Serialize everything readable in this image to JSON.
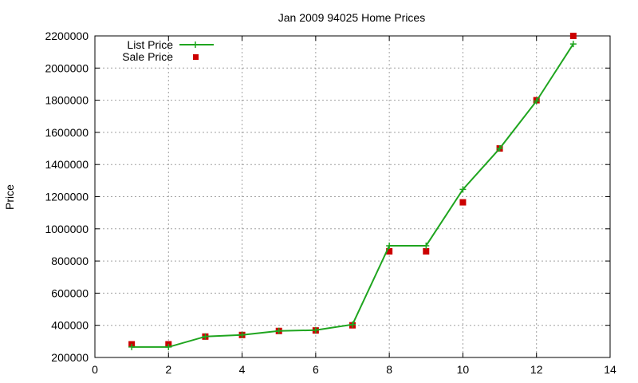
{
  "chart_data": {
    "type": "line",
    "title": "Jan 2009 94025 Home Prices",
    "xlabel": "",
    "ylabel": "Price",
    "xlim": [
      0,
      14
    ],
    "ylim": [
      200000,
      2200000
    ],
    "xticks": [
      0,
      2,
      4,
      6,
      8,
      10,
      12,
      14
    ],
    "yticks": [
      200000,
      400000,
      600000,
      800000,
      1000000,
      1200000,
      1400000,
      1600000,
      1800000,
      2000000,
      2200000
    ],
    "grid": true,
    "legend_position": "top-left",
    "series": [
      {
        "name": "List Price",
        "style": "line-with-plus-markers",
        "color": "#1fa51f",
        "x": [
          1,
          2,
          3,
          4,
          5,
          6,
          7,
          8,
          9,
          10,
          11,
          12,
          13
        ],
        "y": [
          265000,
          265000,
          330000,
          340000,
          365000,
          370000,
          405000,
          895000,
          895000,
          1245000,
          1500000,
          1795000,
          2150000
        ]
      },
      {
        "name": "Sale Price",
        "style": "square-markers",
        "color": "#cc0000",
        "x": [
          1,
          2,
          3,
          4,
          5,
          6,
          7,
          8,
          9,
          10,
          11,
          12,
          13
        ],
        "y": [
          282000,
          282000,
          330000,
          340000,
          365000,
          368000,
          400000,
          860000,
          860000,
          1165000,
          1500000,
          1800000,
          2200000
        ]
      }
    ]
  }
}
